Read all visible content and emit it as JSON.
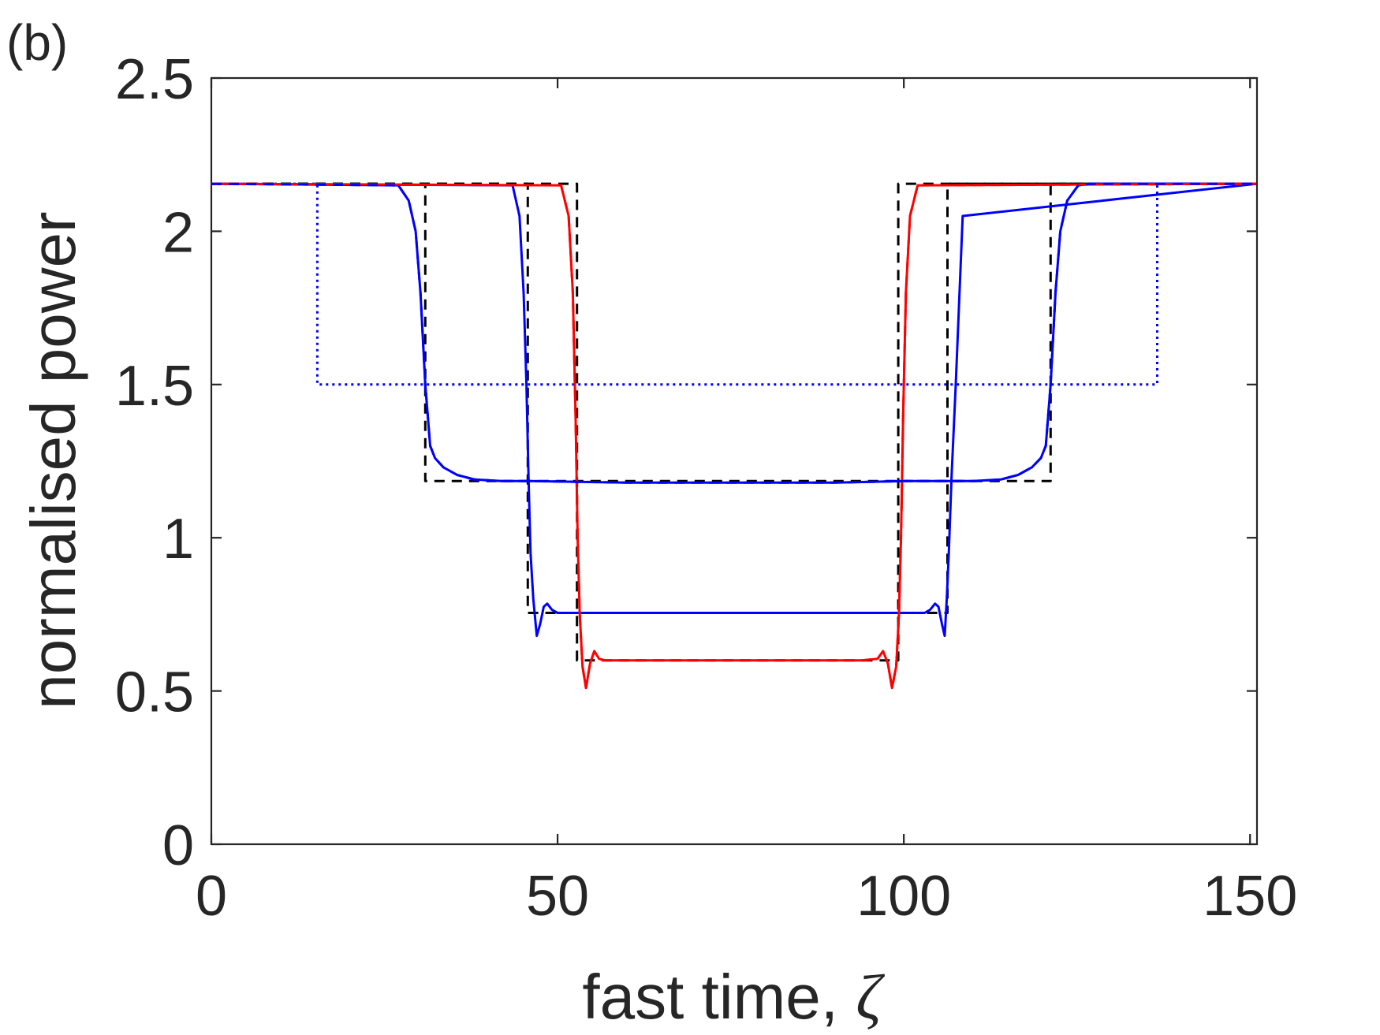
{
  "figure": {
    "panel_label": "(b)"
  },
  "chart_data": {
    "type": "line",
    "xlabel_prefix": "fast time, ",
    "xlabel_symbol": "ζ",
    "ylabel": "normalised power",
    "xlim": [
      0,
      151
    ],
    "ylim": [
      0,
      2.5
    ],
    "xticks": [
      0,
      50,
      100,
      150
    ],
    "yticks": [
      0,
      0.5,
      1,
      1.5,
      2,
      2.5
    ],
    "xtick_labels": [
      "0",
      "50",
      "100",
      "150"
    ],
    "ytick_labels": [
      "0",
      "0.5",
      "1",
      "1.5",
      "2",
      "2.5"
    ],
    "grid": false,
    "box": true,
    "series": [
      {
        "color": "#0000ff",
        "style": "dotted",
        "x": [
          0,
          15.3,
          15.3,
          136.6,
          136.6,
          151
        ],
        "y": [
          2.155,
          2.155,
          1.5,
          1.5,
          2.155,
          2.155
        ]
      },
      {
        "color": "#000000",
        "style": "dashed",
        "x": [
          0,
          30.9,
          30.9,
          121.2,
          121.2,
          151
        ],
        "y": [
          2.155,
          2.155,
          1.185,
          1.185,
          2.155,
          2.155
        ]
      },
      {
        "color": "#000000",
        "style": "dashed",
        "x": [
          0,
          45.7,
          45.7,
          106.3,
          106.3,
          151
        ],
        "y": [
          2.155,
          2.155,
          0.755,
          0.755,
          2.155,
          2.155
        ]
      },
      {
        "color": "#000000",
        "style": "dashed",
        "x": [
          0,
          52.8,
          52.8,
          99.2,
          99.2,
          151
        ],
        "y": [
          2.155,
          2.155,
          0.6,
          0.6,
          2.155,
          2.155
        ]
      },
      {
        "color": "#0000ff",
        "style": "solid",
        "x": [
          0,
          27,
          28.5,
          29.5,
          30.2,
          30.9,
          31.6,
          32.3,
          33.5,
          35.5,
          38,
          42,
          46,
          60,
          75,
          90,
          100,
          106,
          110,
          114,
          116.5,
          118.5,
          119.8,
          120.5,
          121.2,
          121.9,
          122.6,
          123.6,
          125.2,
          127,
          151
        ],
        "y": [
          2.155,
          2.15,
          2.1,
          2.0,
          1.8,
          1.5,
          1.3,
          1.26,
          1.23,
          1.205,
          1.19,
          1.185,
          1.185,
          1.18,
          1.18,
          1.18,
          1.185,
          1.185,
          1.185,
          1.19,
          1.205,
          1.23,
          1.26,
          1.3,
          1.5,
          1.8,
          2.0,
          2.1,
          2.15,
          2.155,
          2.155
        ]
      },
      {
        "color": "#0000ff",
        "style": "solid",
        "x": [
          0,
          43.5,
          44.5,
          45.1,
          45.5,
          45.8,
          46.1,
          46.5,
          47.0,
          47.5,
          48.0,
          48.5,
          49.2,
          50,
          52,
          60,
          80,
          100,
          103,
          103.8,
          104.5,
          105.0,
          105.5,
          105.9,
          106.2,
          106.5,
          106.9,
          107.5,
          108.5,
          151
        ],
        "y": [
          2.155,
          2.15,
          2.05,
          1.8,
          1.5,
          1.2,
          0.95,
          0.8,
          0.68,
          0.72,
          0.775,
          0.785,
          0.765,
          0.755,
          0.755,
          0.755,
          0.755,
          0.755,
          0.755,
          0.765,
          0.785,
          0.775,
          0.72,
          0.68,
          0.8,
          0.95,
          1.2,
          1.5,
          2.05,
          2.155
        ]
      },
      {
        "color": "#ff0000",
        "style": "solid",
        "x": [
          0,
          50.5,
          51.6,
          52.2,
          52.6,
          52.9,
          53.2,
          53.6,
          54.1,
          54.7,
          55.3,
          56.0,
          56.8,
          58,
          60,
          80,
          94,
          96.2,
          97.0,
          97.7,
          98.3,
          98.9,
          99.3,
          99.6,
          99.9,
          100.3,
          100.9,
          102.0,
          151
        ],
        "y": [
          2.155,
          2.15,
          2.05,
          1.8,
          1.4,
          1.0,
          0.75,
          0.58,
          0.51,
          0.59,
          0.63,
          0.605,
          0.6,
          0.6,
          0.6,
          0.6,
          0.6,
          0.605,
          0.63,
          0.59,
          0.51,
          0.58,
          0.75,
          1.0,
          1.4,
          1.8,
          2.05,
          2.15,
          2.155
        ]
      },
      {
        "color": "#ff0000",
        "style": "dashed",
        "x": [
          0,
          50.5,
          51.6,
          52.2,
          52.6,
          52.9,
          53.2,
          53.6,
          54.1,
          54.7,
          55.3,
          56.0,
          56.8,
          58,
          60,
          80,
          94,
          96.2,
          97.0,
          97.7,
          98.3,
          98.9,
          99.3,
          99.6,
          99.9,
          100.3,
          100.9,
          102.0,
          151
        ],
        "y": [
          2.155,
          2.15,
          2.05,
          1.8,
          1.4,
          1.0,
          0.75,
          0.58,
          0.51,
          0.59,
          0.63,
          0.605,
          0.6,
          0.6,
          0.6,
          0.6,
          0.6,
          0.605,
          0.63,
          0.59,
          0.51,
          0.58,
          0.75,
          1.0,
          1.4,
          1.8,
          2.05,
          2.15,
          2.155
        ]
      },
      {
        "color": "#0000ff",
        "style": "dashed",
        "x": [
          0,
          27,
          28.5,
          29.5,
          30.2,
          30.9,
          31.6,
          32.3,
          33.5,
          35.5,
          38,
          42,
          46,
          60,
          75,
          90,
          100,
          106,
          110,
          114,
          116.5,
          118.5,
          119.8,
          120.5,
          121.2,
          121.9,
          122.6,
          123.6,
          125.2,
          127,
          151
        ],
        "y": [
          2.155,
          2.15,
          2.1,
          2.0,
          1.8,
          1.5,
          1.3,
          1.26,
          1.23,
          1.205,
          1.19,
          1.185,
          1.185,
          1.18,
          1.18,
          1.18,
          1.185,
          1.185,
          1.185,
          1.19,
          1.205,
          1.23,
          1.26,
          1.3,
          1.5,
          1.8,
          2.0,
          2.1,
          2.15,
          2.155,
          2.155
        ]
      }
    ]
  }
}
